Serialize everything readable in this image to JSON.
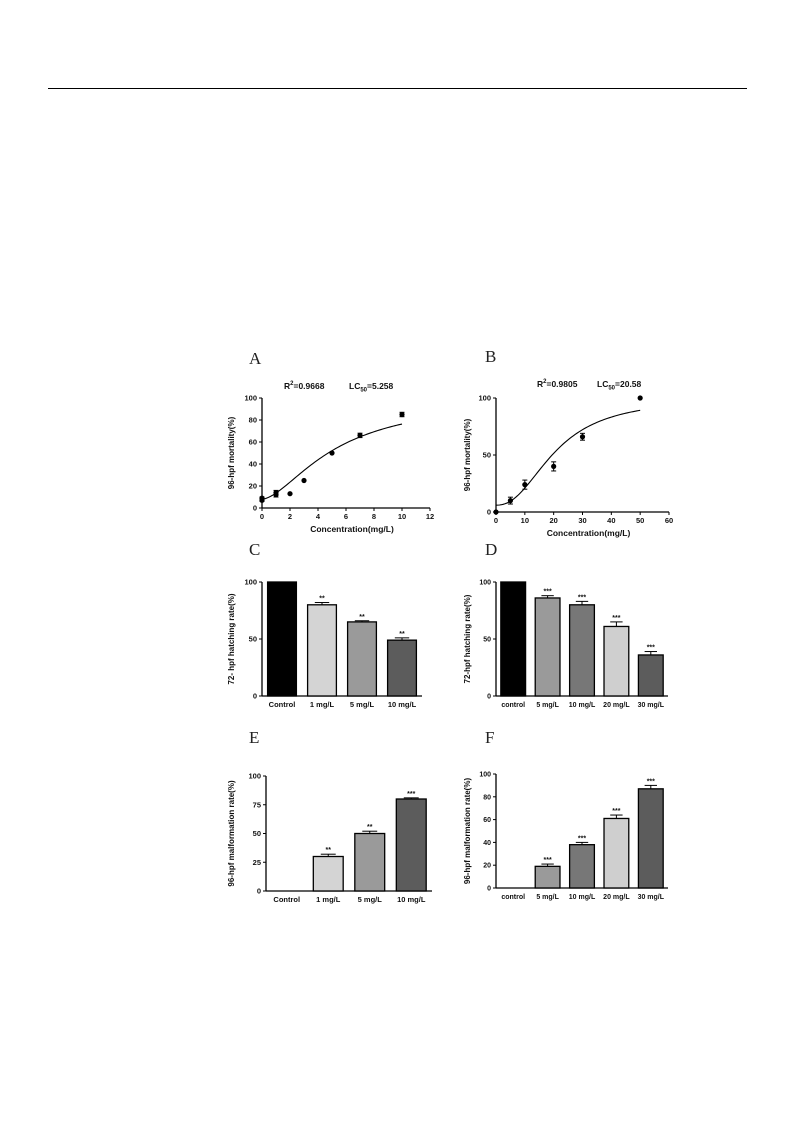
{
  "panels": {
    "A": {
      "letter": "A",
      "r2_label": "R",
      "r2_sup": "2",
      "r2_value": "=0.9668",
      "lc_label": "LC",
      "lc_sub": "50",
      "lc_value": "=5.258"
    },
    "B": {
      "letter": "B",
      "r2_label": "R",
      "r2_sup": "2",
      "r2_value": "=0.9805",
      "lc_label": "LC",
      "lc_sub": "50",
      "lc_value": "=20.58"
    },
    "C": {
      "letter": "C"
    },
    "D": {
      "letter": "D"
    },
    "E": {
      "letter": "E"
    },
    "F": {
      "letter": "F"
    }
  },
  "chart_data": [
    {
      "id": "A",
      "type": "scatter",
      "xlabel": "Concentration(mg/L)",
      "ylabel": "96-hpf mortality(%)",
      "xlim": [
        0,
        12
      ],
      "ylim": [
        0,
        100
      ],
      "xticks": [
        0,
        2,
        4,
        6,
        8,
        10,
        12
      ],
      "yticks": [
        0,
        20,
        40,
        60,
        80,
        100
      ],
      "points": [
        {
          "x": 0,
          "y": 7,
          "err": 1
        },
        {
          "x": 0,
          "y": 9,
          "err": 1
        },
        {
          "x": 1,
          "y": 12,
          "err": 2
        },
        {
          "x": 1,
          "y": 14,
          "err": 2
        },
        {
          "x": 2,
          "y": 13,
          "err": 0
        },
        {
          "x": 3,
          "y": 25,
          "err": 0
        },
        {
          "x": 5,
          "y": 50,
          "err": 0
        },
        {
          "x": 7,
          "y": 66,
          "err": 2
        },
        {
          "x": 10,
          "y": 85,
          "err": 2
        }
      ],
      "fit": {
        "ec50": 5.258,
        "hill": 1.65
      }
    },
    {
      "id": "B",
      "type": "scatter",
      "xlabel": "Concentration(mg/L)",
      "ylabel": "96-hpf mortality(%)",
      "xlim": [
        0,
        60
      ],
      "ylim": [
        0,
        100
      ],
      "xticks": [
        0,
        10,
        20,
        30,
        40,
        50,
        60
      ],
      "yticks": [
        0,
        50,
        100
      ],
      "points": [
        {
          "x": 0,
          "y": 0,
          "err": 0
        },
        {
          "x": 5,
          "y": 10,
          "err": 3
        },
        {
          "x": 10,
          "y": 24,
          "err": 4
        },
        {
          "x": 20,
          "y": 40,
          "err": 4
        },
        {
          "x": 30,
          "y": 66,
          "err": 3
        },
        {
          "x": 50,
          "y": 100,
          "err": 0
        }
      ],
      "fit": {
        "ec50": 20.58,
        "hill": 2.3
      }
    },
    {
      "id": "C",
      "type": "bar",
      "ylabel": "72- hpf hatching rate(%)",
      "ylim": [
        0,
        100
      ],
      "yticks": [
        0,
        50,
        100
      ],
      "categories": [
        "Control",
        "1 mg/L",
        "5 mg/L",
        "10 mg/L"
      ],
      "values": [
        100,
        80,
        65,
        49
      ],
      "errors": [
        0,
        2,
        1,
        2
      ],
      "significance": [
        "",
        "**",
        "**",
        "**"
      ],
      "colors": [
        "#000000",
        "#d4d4d4",
        "#9a9a9a",
        "#5c5c5c"
      ]
    },
    {
      "id": "D",
      "type": "bar",
      "ylabel": "72-hpf hatching rate(%)",
      "ylim": [
        0,
        100
      ],
      "yticks": [
        0,
        50,
        100
      ],
      "categories": [
        "control",
        "5 mg/L",
        "10 mg/L",
        "20 mg/L",
        "30 mg/L"
      ],
      "values": [
        100,
        86,
        80,
        61,
        36
      ],
      "errors": [
        0,
        2,
        3,
        4,
        3
      ],
      "significance": [
        "",
        "***",
        "***",
        "***",
        "***"
      ],
      "colors": [
        "#000000",
        "#9a9a9a",
        "#777777",
        "#cfcfcf",
        "#5c5c5c"
      ]
    },
    {
      "id": "E",
      "type": "bar",
      "ylabel": "96-hpf malformation rate(%)",
      "ylim": [
        0,
        100
      ],
      "yticks": [
        0,
        25,
        50,
        75,
        100
      ],
      "categories": [
        "Control",
        "1 mg/L",
        "5 mg/L",
        "10 mg/L"
      ],
      "values": [
        0,
        30,
        50,
        80
      ],
      "errors": [
        0,
        2,
        2,
        1
      ],
      "significance": [
        "",
        "**",
        "**",
        "***"
      ],
      "colors": [
        "#000000",
        "#d4d4d4",
        "#9a9a9a",
        "#5c5c5c"
      ]
    },
    {
      "id": "F",
      "type": "bar",
      "ylabel": "96-hpf malformation rate(%)",
      "ylim": [
        0,
        100
      ],
      "yticks": [
        0,
        20,
        40,
        60,
        80,
        100
      ],
      "categories": [
        "control",
        "5 mg/L",
        "10 mg/L",
        "20 mg/L",
        "30 mg/L"
      ],
      "values": [
        0,
        19,
        38,
        61,
        87
      ],
      "errors": [
        0,
        2,
        2,
        3,
        3
      ],
      "significance": [
        "",
        "***",
        "***",
        "***",
        "***"
      ],
      "colors": [
        "#000000",
        "#9a9a9a",
        "#777777",
        "#cfcfcf",
        "#5c5c5c"
      ]
    }
  ]
}
